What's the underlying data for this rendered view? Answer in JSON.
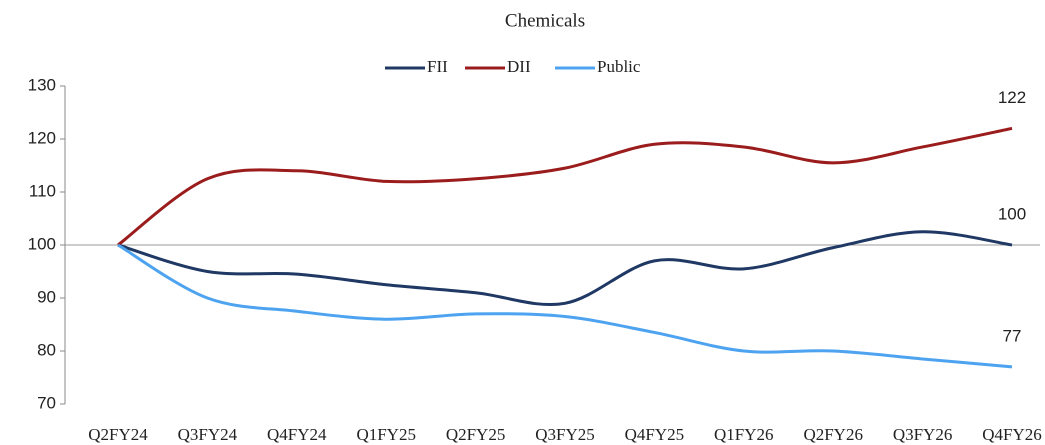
{
  "chart_data": {
    "type": "line",
    "title": "Chemicals",
    "categories": [
      "Q2FY24",
      "Q3FY24",
      "Q4FY24",
      "Q1FY25",
      "Q2FY25",
      "Q3FY25",
      "Q4FY25",
      "Q1FY26",
      "Q2FY26",
      "Q3FY26",
      "Q4FY26"
    ],
    "series": [
      {
        "name": "FII",
        "color": "#1f3864",
        "values": [
          100,
          95,
          94.5,
          92.5,
          91,
          89,
          97,
          95.5,
          99.5,
          102.5,
          100
        ]
      },
      {
        "name": "DII",
        "color": "#9b1c1c",
        "values": [
          100,
          112.5,
          114,
          112,
          112.5,
          114.5,
          119,
          118.5,
          115.5,
          118.5,
          122
        ]
      },
      {
        "name": "Public",
        "color": "#4da3f0",
        "values": [
          100,
          90,
          87.5,
          86,
          87,
          86.5,
          83.5,
          80,
          80,
          78.5,
          77
        ]
      }
    ],
    "ylim": [
      70,
      130
    ],
    "yticks": [
      70,
      80,
      90,
      100,
      110,
      120,
      130
    ],
    "reference_line": 100
  }
}
